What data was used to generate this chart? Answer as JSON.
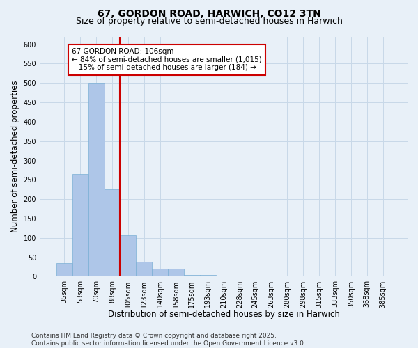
{
  "title_line1": "67, GORDON ROAD, HARWICH, CO12 3TN",
  "title_line2": "Size of property relative to semi-detached houses in Harwich",
  "xlabel": "Distribution of semi-detached houses by size in Harwich",
  "ylabel": "Number of semi-detached properties",
  "categories": [
    "35sqm",
    "53sqm",
    "70sqm",
    "88sqm",
    "105sqm",
    "123sqm",
    "140sqm",
    "158sqm",
    "175sqm",
    "193sqm",
    "210sqm",
    "228sqm",
    "245sqm",
    "263sqm",
    "280sqm",
    "298sqm",
    "315sqm",
    "333sqm",
    "350sqm",
    "368sqm",
    "385sqm"
  ],
  "values": [
    35,
    265,
    500,
    225,
    107,
    38,
    20,
    20,
    5,
    5,
    2,
    0,
    0,
    0,
    0,
    0,
    0,
    0,
    2,
    0,
    2
  ],
  "bar_color": "#aec6e8",
  "bar_edge_color": "#7aafd4",
  "grid_color": "#c8d8e8",
  "background_color": "#e8f0f8",
  "annotation_text": "67 GORDON ROAD: 106sqm\n← 84% of semi-detached houses are smaller (1,015)\n   15% of semi-detached houses are larger (184) →",
  "annotation_box_color": "#ffffff",
  "annotation_border_color": "#cc0000",
  "red_line_index": 3.5,
  "ylim": [
    0,
    620
  ],
  "yticks": [
    0,
    50,
    100,
    150,
    200,
    250,
    300,
    350,
    400,
    450,
    500,
    550,
    600
  ],
  "footnote": "Contains HM Land Registry data © Crown copyright and database right 2025.\nContains public sector information licensed under the Open Government Licence v3.0.",
  "title_fontsize": 10,
  "subtitle_fontsize": 9,
  "axis_label_fontsize": 8.5,
  "tick_fontsize": 7,
  "annotation_fontsize": 7.5,
  "footnote_fontsize": 6.5
}
